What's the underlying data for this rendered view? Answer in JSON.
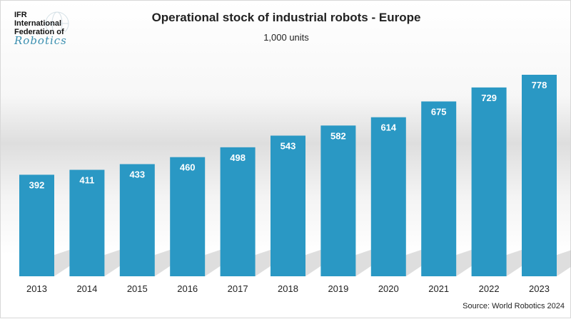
{
  "logo": {
    "line1": "IFR",
    "line2": "International",
    "line3": "Federation of",
    "line4": "Robotics"
  },
  "chart_data": {
    "type": "bar",
    "title": "Operational stock of industrial robots - Europe",
    "subtitle": "1,000 units",
    "categories": [
      "2013",
      "2014",
      "2015",
      "2016",
      "2017",
      "2018",
      "2019",
      "2020",
      "2021",
      "2022",
      "2023"
    ],
    "values": [
      392,
      411,
      433,
      460,
      498,
      543,
      582,
      614,
      675,
      729,
      778
    ],
    "ylim": [
      0,
      778
    ],
    "grid": false,
    "data_labels": true,
    "bar_color": "#2a98c4",
    "source": "Source: World Robotics 2024"
  }
}
